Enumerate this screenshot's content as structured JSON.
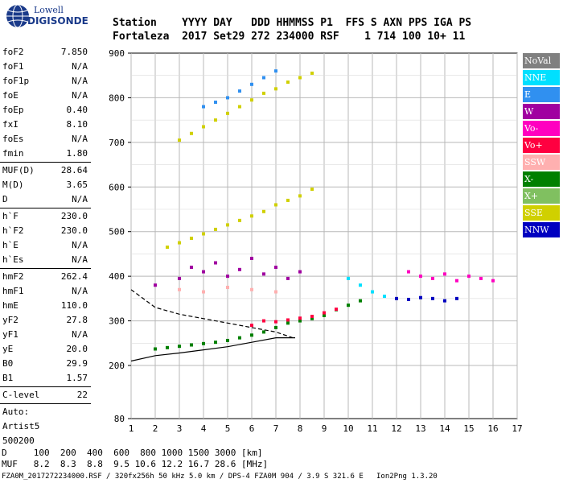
{
  "logo": {
    "line1": "Lowell",
    "line2": "DIGISONDE"
  },
  "header": {
    "line1": "Station    YYYY DAY   DDD HHMMSS P1  FFS S AXN PPS IGA PS",
    "line2": "Fortaleza  2017 Set29 272 234000 RSF    1 714 100 10+ 11"
  },
  "params": {
    "group1": [
      {
        "label": "foF2",
        "value": "7.850"
      },
      {
        "label": "foF1",
        "value": "N/A"
      },
      {
        "label": "foF1p",
        "value": "N/A"
      },
      {
        "label": "foE",
        "value": "N/A"
      },
      {
        "label": "foEp",
        "value": "0.40"
      },
      {
        "label": "fxI",
        "value": "8.10"
      },
      {
        "label": "foEs",
        "value": "N/A"
      },
      {
        "label": "fmin",
        "value": "1.80"
      }
    ],
    "group2": [
      {
        "label": "MUF(D)",
        "value": "28.64"
      },
      {
        "label": "M(D)",
        "value": "3.65"
      },
      {
        "label": "D",
        "value": "N/A"
      }
    ],
    "group3": [
      {
        "label": "h`F",
        "value": "230.0"
      },
      {
        "label": "h`F2",
        "value": "230.0"
      },
      {
        "label": "h`E",
        "value": "N/A"
      },
      {
        "label": "h`Es",
        "value": "N/A"
      }
    ],
    "group4": [
      {
        "label": "hmF2",
        "value": "262.4"
      },
      {
        "label": "hmF1",
        "value": "N/A"
      },
      {
        "label": "hmE",
        "value": "110.0"
      },
      {
        "label": "yF2",
        "value": "27.8"
      },
      {
        "label": "yF1",
        "value": "N/A"
      },
      {
        "label": "yE",
        "value": "20.0"
      },
      {
        "label": "B0",
        "value": "29.9"
      },
      {
        "label": "B1",
        "value": "1.57"
      }
    ],
    "group5": [
      {
        "label": "C-level",
        "value": "22"
      }
    ],
    "auto": [
      "Auto:",
      "Artist5",
      "500200"
    ]
  },
  "legend": [
    {
      "label": "NoVal",
      "color": "#808080"
    },
    {
      "label": "NNE",
      "color": "#00e0ff"
    },
    {
      "label": "E",
      "color": "#3090f0"
    },
    {
      "label": "W",
      "color": "#a000a0"
    },
    {
      "label": "Vo-",
      "color": "#ff00c0"
    },
    {
      "label": "Vo+",
      "color": "#ff0040"
    },
    {
      "label": "SSW",
      "color": "#ffb0b0"
    },
    {
      "label": "X-",
      "color": "#008000"
    },
    {
      "label": "X+",
      "color": "#80c060"
    },
    {
      "label": "SSE",
      "color": "#d0d000"
    },
    {
      "label": "NNW",
      "color": "#0000c0"
    }
  ],
  "footer": {
    "line1": "D     100  200  400  600  800 1000 1500 3000 [km]",
    "line2": "MUF   8.2  8.3  8.8  9.5 10.6 12.2 16.7 28.6 [MHz]",
    "line3": "FZA0M_2017272234000.RSF / 320fx256h 50 kHz 5.0 km / DPS-4 FZA0M 904 / 3.9 S 321.6 E   Ion2Png 1.3.20"
  },
  "chart_data": {
    "type": "scatter",
    "x_ticks": [
      "1",
      "2",
      "3",
      "4",
      "5",
      "6",
      "7",
      "8",
      "9",
      "10",
      "11",
      "12",
      "13",
      "14",
      "15",
      "16",
      "17"
    ],
    "y_ticks": [
      "80",
      "200",
      "300",
      "400",
      "500",
      "600",
      "700",
      "800",
      "900"
    ],
    "xlim": [
      1,
      17
    ],
    "ylim": [
      80,
      900
    ],
    "grid": true,
    "series": [
      {
        "name": "SSE",
        "color": "#d0d000",
        "x": [
          2.5,
          3,
          3.5,
          4,
          4.5,
          5,
          5.5,
          6,
          6.5,
          7,
          7.5,
          8,
          8.5
        ],
        "y": [
          465,
          475,
          485,
          495,
          505,
          515,
          525,
          535,
          545,
          560,
          570,
          580,
          595
        ]
      },
      {
        "name": "SSE",
        "color": "#d0d000",
        "x": [
          3,
          3.5,
          4,
          4.5,
          5,
          5.5,
          6,
          6.5,
          7,
          7.5,
          8,
          8.5
        ],
        "y": [
          705,
          720,
          735,
          750,
          765,
          780,
          795,
          810,
          820,
          835,
          845,
          855
        ]
      },
      {
        "name": "E",
        "color": "#3090f0",
        "x": [
          4,
          4.5,
          5,
          5.5,
          6,
          6.5,
          7
        ],
        "y": [
          780,
          790,
          800,
          815,
          830,
          845,
          860
        ]
      },
      {
        "name": "X-",
        "color": "#008000",
        "x": [
          2,
          2.5,
          3,
          3.5,
          4,
          4.5,
          5,
          5.5,
          6,
          6.5,
          7,
          7.5,
          8,
          8.5,
          9,
          9.5,
          10,
          10.5
        ],
        "y": [
          237,
          240,
          243,
          246,
          249,
          252,
          256,
          262,
          268,
          275,
          285,
          295,
          300,
          305,
          312,
          325,
          335,
          345
        ]
      },
      {
        "name": "Vo+",
        "color": "#ff0040",
        "x": [
          6,
          6.5,
          7,
          7.5,
          8,
          8.5,
          9,
          9.5
        ],
        "y": [
          290,
          300,
          298,
          302,
          306,
          310,
          318,
          326
        ]
      },
      {
        "name": "W",
        "color": "#a000a0",
        "x": [
          2,
          3,
          3.5,
          4,
          4.5,
          5,
          5.5,
          6,
          6.5,
          7,
          7.5,
          8
        ],
        "y": [
          380,
          395,
          420,
          410,
          430,
          400,
          415,
          440,
          405,
          420,
          395,
          410
        ]
      },
      {
        "name": "Vo-",
        "color": "#ff00c0",
        "x": [
          12.5,
          13,
          13.5,
          14,
          14.5,
          15,
          15.5,
          16
        ],
        "y": [
          410,
          400,
          395,
          405,
          390,
          400,
          395,
          390
        ]
      },
      {
        "name": "NNW",
        "color": "#0000c0",
        "x": [
          12,
          12.5,
          13,
          13.5,
          14,
          14.5
        ],
        "y": [
          350,
          348,
          352,
          350,
          345,
          350
        ]
      },
      {
        "name": "NNE",
        "color": "#00e0ff",
        "x": [
          10,
          10.5,
          11,
          11.5
        ],
        "y": [
          395,
          380,
          365,
          355
        ]
      },
      {
        "name": "SSW",
        "color": "#ffb0b0",
        "x": [
          3,
          4,
          5,
          6,
          7
        ],
        "y": [
          370,
          365,
          375,
          370,
          365
        ]
      }
    ],
    "profile_dashed": {
      "x": [
        1,
        2,
        3,
        4,
        5,
        6,
        7,
        7.7
      ],
      "y": [
        370,
        330,
        315,
        305,
        295,
        285,
        275,
        262
      ]
    },
    "profile_solid": {
      "x": [
        1,
        2,
        3,
        4,
        5,
        6,
        7,
        7.8
      ],
      "y": [
        210,
        222,
        228,
        235,
        242,
        252,
        262,
        262
      ]
    }
  }
}
